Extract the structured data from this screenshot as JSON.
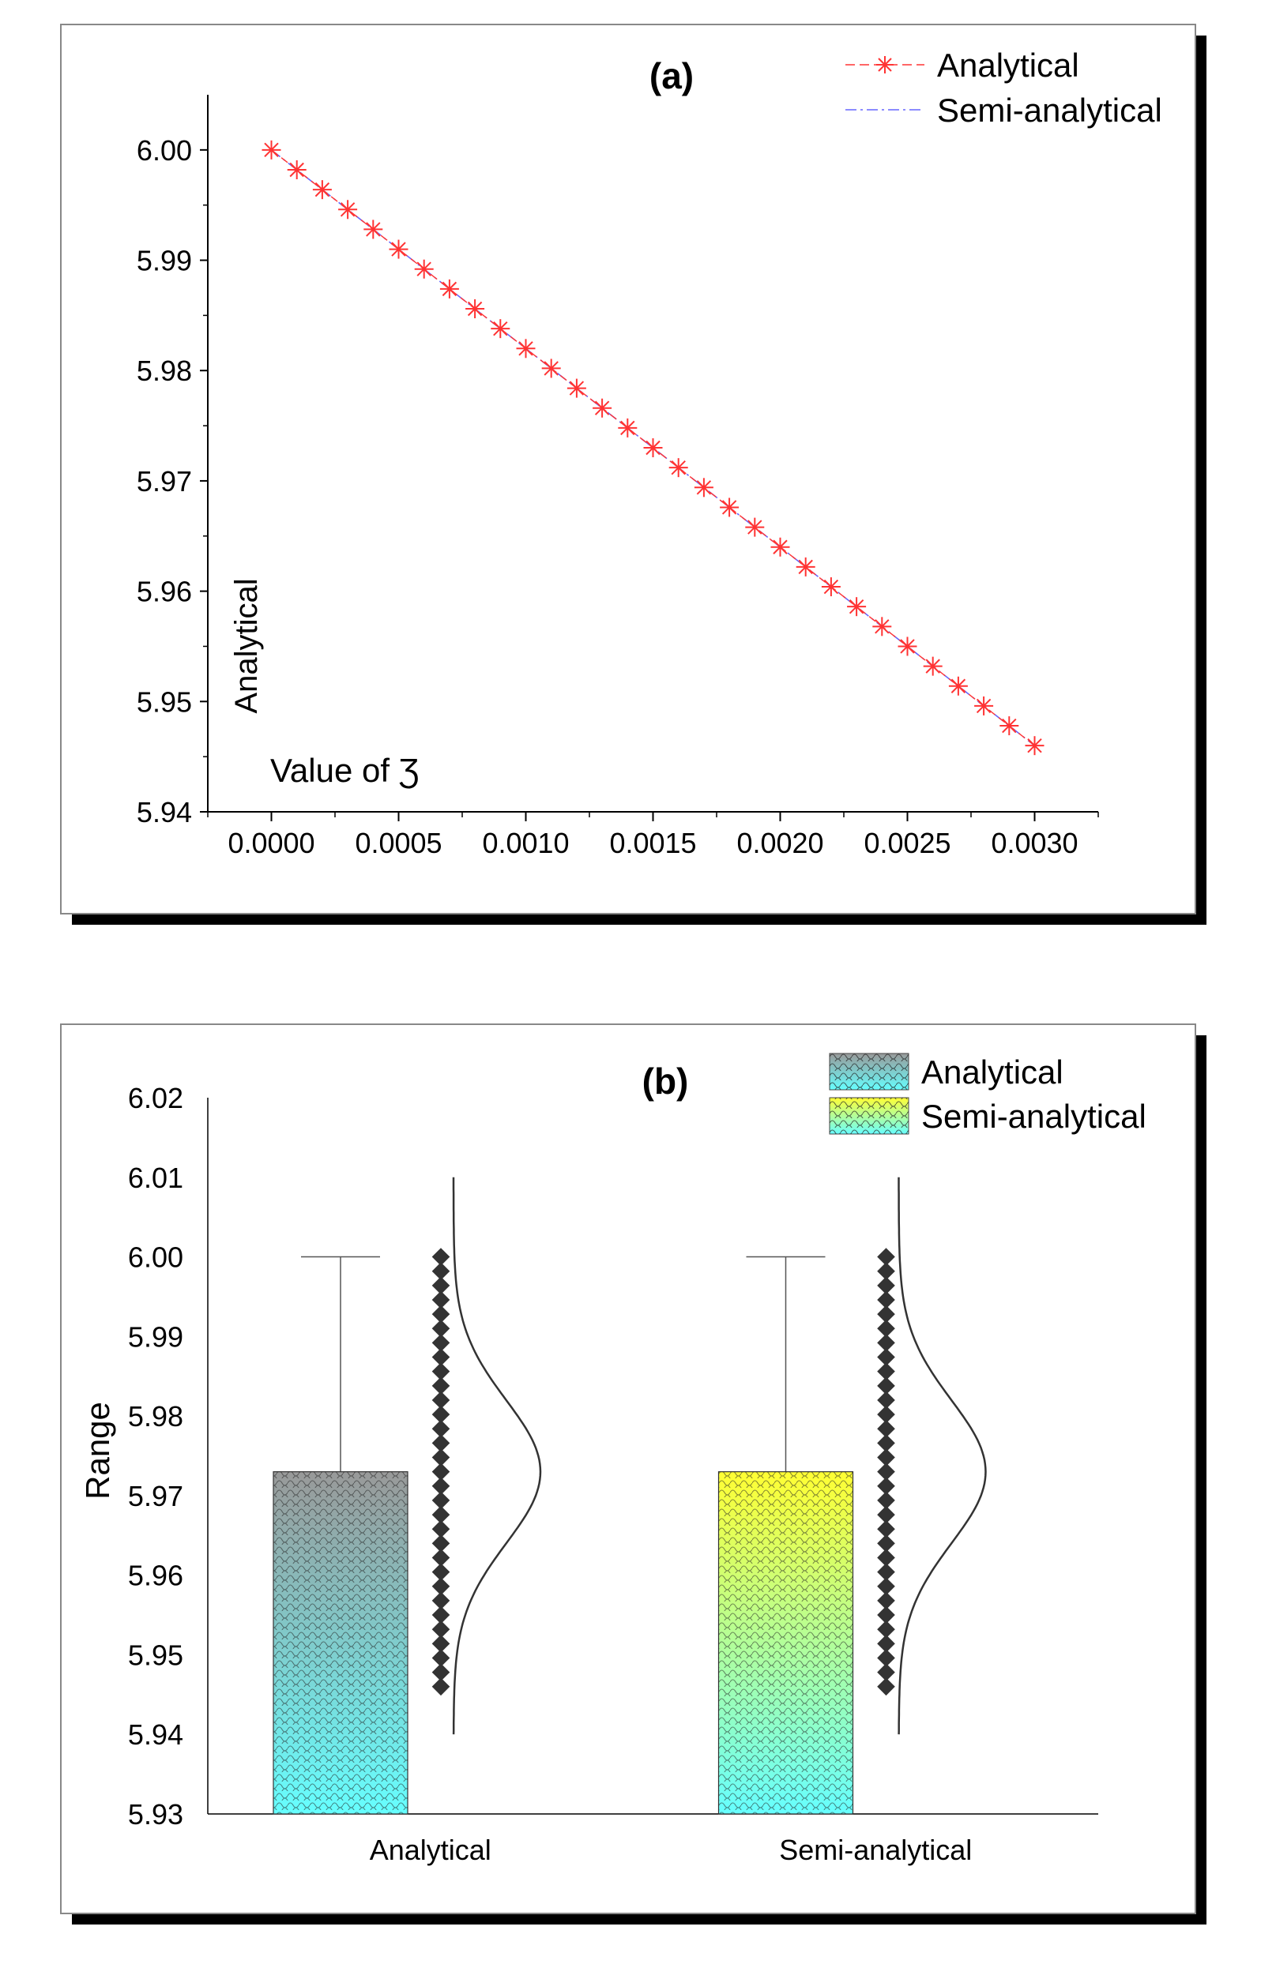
{
  "chart_data": [
    {
      "type": "line",
      "panel_label": "(a)",
      "title": "",
      "xlabel": "",
      "ylabel": "Analytical",
      "annotation": "Value of Ʒ",
      "xlim": [
        -0.00025,
        0.00325
      ],
      "ylim": [
        5.94,
        6.005
      ],
      "xticks": [
        0.0,
        0.0005,
        0.001,
        0.0015,
        0.002,
        0.0025,
        0.003
      ],
      "xtick_labels": [
        "0.0000",
        "0.0005",
        "0.0010",
        "0.0015",
        "0.0020",
        "0.0025",
        "0.0030"
      ],
      "yticks": [
        5.94,
        5.95,
        5.96,
        5.97,
        5.98,
        5.99,
        6.0
      ],
      "ytick_labels": [
        "5.94",
        "5.95",
        "5.96",
        "5.97",
        "5.98",
        "5.99",
        "6.00"
      ],
      "legend_position": "top-right",
      "x": [
        0.0,
        0.0001,
        0.0002,
        0.0003,
        0.0004,
        0.0005,
        0.0006,
        0.0007,
        0.0008,
        0.0009,
        0.001,
        0.0011,
        0.0012,
        0.0013,
        0.0014,
        0.0015,
        0.0016,
        0.0017,
        0.0018,
        0.0019,
        0.002,
        0.0021,
        0.0022,
        0.0023,
        0.0024,
        0.0025,
        0.0026,
        0.0027,
        0.0028,
        0.0029,
        0.003
      ],
      "series": [
        {
          "name": "Analytical",
          "style": "dash-star",
          "color": "#ff3333",
          "values": [
            6.0,
            5.9982,
            5.9964,
            5.9946,
            5.9928,
            5.991,
            5.9892,
            5.9874,
            5.9856,
            5.9838,
            5.982,
            5.9802,
            5.9784,
            5.9766,
            5.9748,
            5.973,
            5.9712,
            5.9694,
            5.9676,
            5.9658,
            5.964,
            5.9622,
            5.9604,
            5.9586,
            5.9568,
            5.955,
            5.9532,
            5.9514,
            5.9496,
            5.9478,
            5.946
          ]
        },
        {
          "name": "Semi-analytical",
          "style": "dash-dot",
          "color": "#6666ff",
          "values": [
            6.0,
            5.9982,
            5.9964,
            5.9946,
            5.9928,
            5.991,
            5.9892,
            5.9874,
            5.9856,
            5.9838,
            5.982,
            5.9802,
            5.9784,
            5.9766,
            5.9748,
            5.973,
            5.9712,
            5.9694,
            5.9676,
            5.9658,
            5.964,
            5.9622,
            5.9604,
            5.9586,
            5.9568,
            5.955,
            5.9532,
            5.9514,
            5.9496,
            5.9478,
            5.946
          ]
        }
      ]
    },
    {
      "type": "bar",
      "panel_label": "(b)",
      "title": "",
      "xlabel": "",
      "ylabel": "Range",
      "ylim": [
        5.93,
        6.02
      ],
      "yticks": [
        5.93,
        5.94,
        5.95,
        5.96,
        5.97,
        5.98,
        5.99,
        6.0,
        6.01,
        6.02
      ],
      "ytick_labels": [
        "5.93",
        "5.94",
        "5.95",
        "5.96",
        "5.97",
        "5.98",
        "5.99",
        "6.00",
        "6.01",
        "6.02"
      ],
      "categories": [
        "Analytical",
        "Semi-analytical"
      ],
      "legend_position": "top-right",
      "series": [
        {
          "name": "Analytical",
          "mean": 5.973,
          "error_upper": 6.0,
          "gradient_top": "#999999",
          "gradient_bottom": "#66ffff",
          "distribution_points": [
            6.0,
            5.9982,
            5.9964,
            5.9946,
            5.9928,
            5.991,
            5.9892,
            5.9874,
            5.9856,
            5.9838,
            5.982,
            5.9802,
            5.9784,
            5.9766,
            5.9748,
            5.973,
            5.9712,
            5.9694,
            5.9676,
            5.9658,
            5.964,
            5.9622,
            5.9604,
            5.9586,
            5.9568,
            5.955,
            5.9532,
            5.9514,
            5.9496,
            5.9478,
            5.946
          ],
          "normal_curve": {
            "mean": 5.973,
            "sd": 0.009
          }
        },
        {
          "name": "Semi-analytical",
          "mean": 5.973,
          "error_upper": 6.0,
          "gradient_top": "#ffff33",
          "gradient_bottom": "#66ffff",
          "distribution_points": [
            6.0,
            5.9982,
            5.9964,
            5.9946,
            5.9928,
            5.991,
            5.9892,
            5.9874,
            5.9856,
            5.9838,
            5.982,
            5.9802,
            5.9784,
            5.9766,
            5.9748,
            5.973,
            5.9712,
            5.9694,
            5.9676,
            5.9658,
            5.964,
            5.9622,
            5.9604,
            5.9586,
            5.9568,
            5.955,
            5.9532,
            5.9514,
            5.9496,
            5.9478,
            5.946
          ],
          "normal_curve": {
            "mean": 5.973,
            "sd": 0.009
          }
        }
      ]
    }
  ]
}
